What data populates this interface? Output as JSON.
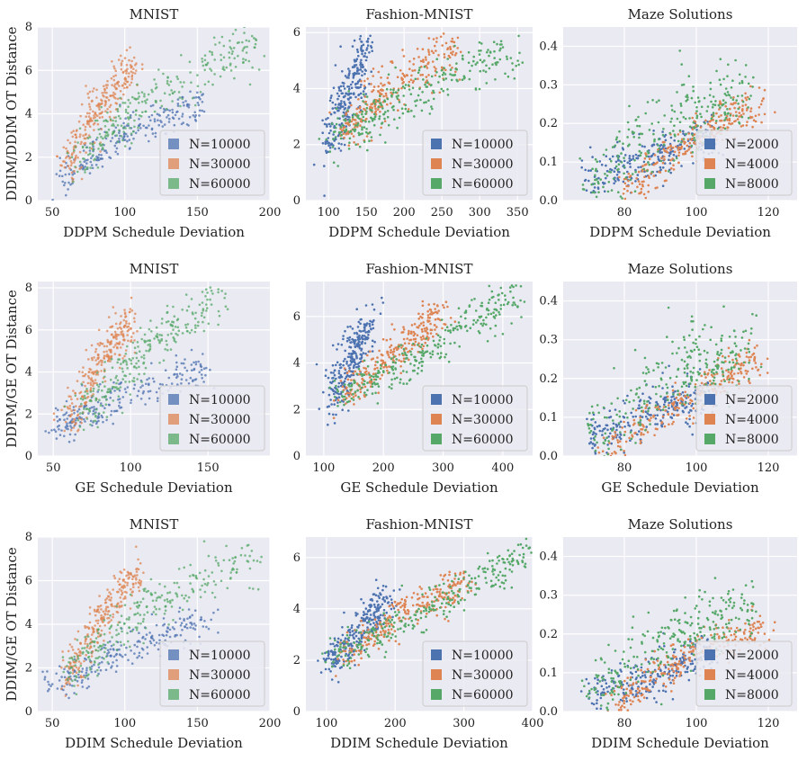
{
  "palette": {
    "blue": "#4c72b0",
    "orange": "#dd8452",
    "green": "#55a868"
  },
  "chart_data": [
    {
      "type": "scatter",
      "title": "MNIST",
      "xlabel": "DDPM Schedule Deviation",
      "ylabel": "DDIM/DDIM OT Distance",
      "xlim": [
        40,
        200
      ],
      "ylim": [
        0,
        8
      ],
      "xticks": [
        50,
        100,
        150,
        200
      ],
      "yticks": [
        0,
        2,
        4,
        6,
        8
      ],
      "legend": "bottom-right",
      "marker_alpha": 0.75,
      "series": [
        {
          "name": "N=10000",
          "color": "#4c72b0",
          "cloud": [
            [
              55,
              1.0
            ],
            [
              100,
              3.0
            ],
            [
              155,
              4.5
            ]
          ],
          "spread": 0.4,
          "sign": -1,
          "n": 220
        },
        {
          "name": "N=30000",
          "color": "#dd8452",
          "cloud": [
            [
              60,
              1.5
            ],
            [
              80,
              4.2
            ],
            [
              105,
              6.2
            ]
          ],
          "spread": 0.45,
          "sign": 1,
          "n": 260
        },
        {
          "name": "N=60000",
          "color": "#55a868",
          "cloud": [
            [
              65,
              1.7
            ],
            [
              110,
              4.5
            ],
            [
              190,
              7.3
            ]
          ],
          "spread": 0.55,
          "sign": 1,
          "n": 260
        }
      ]
    },
    {
      "type": "scatter",
      "title": "Fashion-MNIST",
      "xlabel": "DDPM Schedule Deviation",
      "ylabel": "",
      "xlim": [
        70,
        370
      ],
      "ylim": [
        0,
        6.2
      ],
      "xticks": [
        100,
        150,
        200,
        250,
        300,
        350
      ],
      "yticks": [
        0,
        2,
        4,
        6
      ],
      "legend": "bottom-right",
      "marker_alpha": 1,
      "series": [
        {
          "name": "N=10000",
          "color": "#4c72b0",
          "cloud": [
            [
              100,
              2.0
            ],
            [
              125,
              3.8
            ],
            [
              150,
              5.4
            ]
          ],
          "spread": 0.5,
          "sign": -1,
          "n": 260
        },
        {
          "name": "N=30000",
          "color": "#dd8452",
          "cloud": [
            [
              120,
              2.4
            ],
            [
              190,
              4.2
            ],
            [
              270,
              5.4
            ]
          ],
          "spread": 0.45,
          "sign": 1,
          "n": 260
        },
        {
          "name": "N=60000",
          "color": "#55a868",
          "cloud": [
            [
              100,
              2.2
            ],
            [
              210,
              3.8
            ],
            [
              350,
              5.5
            ]
          ],
          "spread": 0.45,
          "sign": -1,
          "n": 280
        }
      ]
    },
    {
      "type": "scatter",
      "title": "Maze Solutions",
      "xlabel": "DDPM Schedule Deviation",
      "ylabel": "",
      "xlim": [
        63,
        128
      ],
      "ylim": [
        0,
        0.45
      ],
      "xticks": [
        80,
        100,
        120
      ],
      "yticks": [
        0.0,
        0.1,
        0.2,
        0.3,
        0.4
      ],
      "legend": "bottom-right",
      "marker_alpha": 1,
      "series": [
        {
          "name": "N=2000",
          "color": "#4c72b0",
          "cloud": [
            [
              70,
              0.05
            ],
            [
              90,
              0.12
            ],
            [
              105,
              0.17
            ]
          ],
          "spread": 0.03,
          "sign": -1,
          "n": 240
        },
        {
          "name": "N=4000",
          "color": "#dd8452",
          "cloud": [
            [
              80,
              0.02
            ],
            [
              100,
              0.17
            ],
            [
              118,
              0.25
            ]
          ],
          "spread": 0.025,
          "sign": -1,
          "n": 260
        },
        {
          "name": "N=8000",
          "color": "#55a868",
          "cloud": [
            [
              70,
              0.04
            ],
            [
              95,
              0.22
            ],
            [
              115,
              0.28
            ]
          ],
          "spread": 0.05,
          "sign": 1,
          "n": 260
        }
      ]
    },
    {
      "type": "scatter",
      "title": "MNIST",
      "xlabel": "GE Schedule Deviation",
      "ylabel": "DDPM/GE OT Distance",
      "xlim": [
        40,
        190
      ],
      "ylim": [
        0,
        8.3
      ],
      "xticks": [
        50,
        100,
        150
      ],
      "yticks": [
        0,
        2,
        4,
        6,
        8
      ],
      "legend": "bottom-right",
      "marker_alpha": 0.75,
      "series": [
        {
          "name": "N=10000",
          "color": "#4c72b0",
          "cloud": [
            [
              50,
              1.2
            ],
            [
              90,
              2.8
            ],
            [
              150,
              4.2
            ]
          ],
          "spread": 0.4,
          "sign": -1,
          "n": 220
        },
        {
          "name": "N=30000",
          "color": "#dd8452",
          "cloud": [
            [
              60,
              1.6
            ],
            [
              80,
              4.5
            ],
            [
              100,
              6.5
            ]
          ],
          "spread": 0.45,
          "sign": 1,
          "n": 260
        },
        {
          "name": "N=60000",
          "color": "#55a868",
          "cloud": [
            [
              65,
              1.8
            ],
            [
              110,
              5.0
            ],
            [
              160,
              7.8
            ]
          ],
          "spread": 0.55,
          "sign": 1,
          "n": 260
        }
      ]
    },
    {
      "type": "scatter",
      "title": "Fashion-MNIST",
      "xlabel": "GE Schedule Deviation",
      "ylabel": "",
      "xlim": [
        70,
        450
      ],
      "ylim": [
        0,
        7.5
      ],
      "xticks": [
        100,
        200,
        300,
        400
      ],
      "yticks": [
        0,
        2,
        4,
        6
      ],
      "legend": "bottom-right",
      "marker_alpha": 1,
      "series": [
        {
          "name": "N=10000",
          "color": "#4c72b0",
          "cloud": [
            [
              110,
              2.2
            ],
            [
              150,
              4.5
            ],
            [
              180,
              5.8
            ]
          ],
          "spread": 0.5,
          "sign": -1,
          "n": 260
        },
        {
          "name": "N=30000",
          "color": "#dd8452",
          "cloud": [
            [
              130,
              2.5
            ],
            [
              230,
              4.6
            ],
            [
              300,
              6.2
            ]
          ],
          "spread": 0.45,
          "sign": 1,
          "n": 260
        },
        {
          "name": "N=60000",
          "color": "#55a868",
          "cloud": [
            [
              120,
              2.5
            ],
            [
              280,
              4.6
            ],
            [
              430,
              7.0
            ]
          ],
          "spread": 0.45,
          "sign": -1,
          "n": 280
        }
      ]
    },
    {
      "type": "scatter",
      "title": "Maze Solutions",
      "xlabel": "GE Schedule Deviation",
      "ylabel": "",
      "xlim": [
        63,
        128
      ],
      "ylim": [
        0,
        0.45
      ],
      "xticks": [
        80,
        100,
        120
      ],
      "yticks": [
        0.0,
        0.1,
        0.2,
        0.3,
        0.4
      ],
      "legend": "bottom-right",
      "marker_alpha": 1,
      "series": [
        {
          "name": "N=2000",
          "color": "#4c72b0",
          "cloud": [
            [
              70,
              0.05
            ],
            [
              90,
              0.12
            ],
            [
              105,
              0.16
            ]
          ],
          "spread": 0.03,
          "sign": -1,
          "n": 240
        },
        {
          "name": "N=4000",
          "color": "#dd8452",
          "cloud": [
            [
              75,
              0.02
            ],
            [
              100,
              0.16
            ],
            [
              118,
              0.26
            ]
          ],
          "spread": 0.025,
          "sign": -1,
          "n": 260
        },
        {
          "name": "N=8000",
          "color": "#55a868",
          "cloud": [
            [
              70,
              0.04
            ],
            [
              95,
              0.22
            ],
            [
              115,
              0.28
            ]
          ],
          "spread": 0.05,
          "sign": 1,
          "n": 260
        }
      ]
    },
    {
      "type": "scatter",
      "title": "MNIST",
      "xlabel": "DDIM Schedule Deviation",
      "ylabel": "DDIM/GE OT Distance",
      "xlim": [
        40,
        200
      ],
      "ylim": [
        0,
        8
      ],
      "xticks": [
        50,
        100,
        150,
        200
      ],
      "yticks": [
        0,
        2,
        4,
        6,
        8
      ],
      "legend": "bottom-right",
      "marker_alpha": 0.75,
      "series": [
        {
          "name": "N=10000",
          "color": "#4c72b0",
          "cloud": [
            [
              50,
              1.1
            ],
            [
              100,
              2.8
            ],
            [
              160,
              4.3
            ]
          ],
          "spread": 0.4,
          "sign": -1,
          "n": 220
        },
        {
          "name": "N=30000",
          "color": "#dd8452",
          "cloud": [
            [
              60,
              1.5
            ],
            [
              85,
              4.5
            ],
            [
              110,
              6.5
            ]
          ],
          "spread": 0.45,
          "sign": 1,
          "n": 260
        },
        {
          "name": "N=60000",
          "color": "#55a868",
          "cloud": [
            [
              60,
              1.7
            ],
            [
              120,
              5.0
            ],
            [
              190,
              7.0
            ]
          ],
          "spread": 0.55,
          "sign": 1,
          "n": 260
        }
      ]
    },
    {
      "type": "scatter",
      "title": "Fashion-MNIST",
      "xlabel": "DDIM Schedule Deviation",
      "ylabel": "",
      "xlim": [
        70,
        400
      ],
      "ylim": [
        0,
        6.8
      ],
      "xticks": [
        100,
        200,
        300,
        400
      ],
      "yticks": [
        0,
        2,
        4,
        6
      ],
      "legend": "bottom-right",
      "marker_alpha": 1,
      "series": [
        {
          "name": "N=10000",
          "color": "#4c72b0",
          "cloud": [
            [
              100,
              1.8
            ],
            [
              150,
              3.2
            ],
            [
              190,
              4.4
            ]
          ],
          "spread": 0.35,
          "sign": -1,
          "n": 260
        },
        {
          "name": "N=30000",
          "color": "#dd8452",
          "cloud": [
            [
              120,
              2.2
            ],
            [
              220,
              4.0
            ],
            [
              300,
              5.0
            ]
          ],
          "spread": 0.35,
          "sign": 1,
          "n": 260
        },
        {
          "name": "N=60000",
          "color": "#55a868",
          "cloud": [
            [
              110,
              2.0
            ],
            [
              250,
              4.0
            ],
            [
              400,
              6.3
            ]
          ],
          "spread": 0.35,
          "sign": -1,
          "n": 280
        }
      ]
    },
    {
      "type": "scatter",
      "title": "Maze Solutions",
      "xlabel": "DDIM Schedule Deviation",
      "ylabel": "",
      "xlim": [
        63,
        128
      ],
      "ylim": [
        0,
        0.45
      ],
      "xticks": [
        80,
        100,
        120
      ],
      "yticks": [
        0.0,
        0.1,
        0.2,
        0.3,
        0.4
      ],
      "legend": "bottom-right",
      "marker_alpha": 1,
      "series": [
        {
          "name": "N=2000",
          "color": "#4c72b0",
          "cloud": [
            [
              70,
              0.04
            ],
            [
              90,
              0.1
            ],
            [
              105,
              0.16
            ]
          ],
          "spread": 0.025,
          "sign": -1,
          "n": 240
        },
        {
          "name": "N=4000",
          "color": "#dd8452",
          "cloud": [
            [
              78,
              0.02
            ],
            [
              100,
              0.16
            ],
            [
              120,
              0.22
            ]
          ],
          "spread": 0.025,
          "sign": -1,
          "n": 260
        },
        {
          "name": "N=8000",
          "color": "#55a868",
          "cloud": [
            [
              70,
              0.03
            ],
            [
              95,
              0.2
            ],
            [
              115,
              0.27
            ]
          ],
          "spread": 0.04,
          "sign": 1,
          "n": 260
        }
      ]
    }
  ]
}
